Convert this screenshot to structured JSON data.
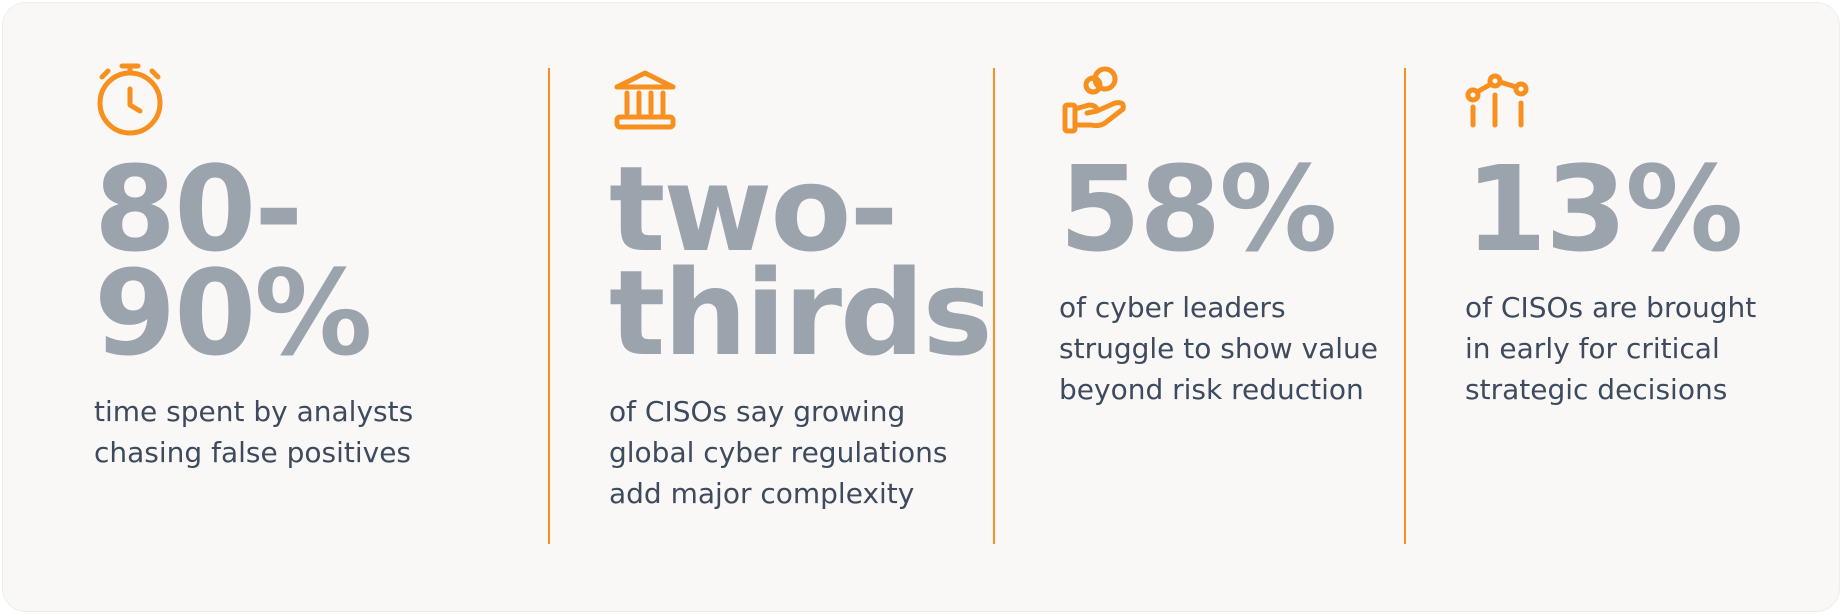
{
  "stats": [
    {
      "value": "80-90%",
      "description_lines": [
        "time spent by analysts",
        "chasing false positives"
      ]
    },
    {
      "value": "two-thirds",
      "description_lines": [
        "of CISOs say growing",
        "global cyber regulations",
        "add major complexity"
      ]
    },
    {
      "value": "58%",
      "description_lines": [
        "of cyber leaders",
        "struggle to show value",
        "beyond risk reduction"
      ]
    },
    {
      "value": "13%",
      "description_lines": [
        "of CISOs are brought",
        "in early for critical",
        "strategic decisions"
      ]
    }
  ]
}
